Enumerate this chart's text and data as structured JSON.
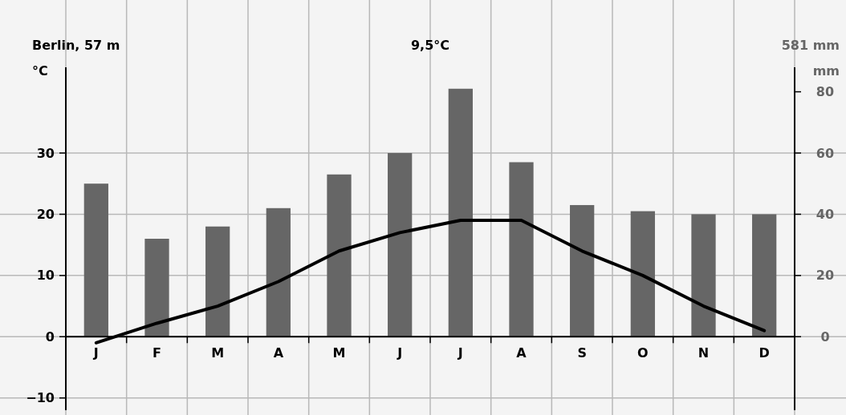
{
  "chart_data": {
    "type": "bar",
    "title": "Berlin, 57 m",
    "ylabel": "°C",
    "y2label": "mm",
    "annotations": [
      "9,5°C",
      "581 mm"
    ],
    "categories": [
      "J",
      "F",
      "M",
      "A",
      "M",
      "J",
      "J",
      "A",
      "S",
      "O",
      "N",
      "D"
    ],
    "series": [
      {
        "axis": "y2",
        "color": "#666666",
        "values": [
          50,
          32,
          36,
          42,
          53,
          60,
          81,
          57,
          43,
          41,
          40,
          40
        ]
      },
      {
        "type": "line",
        "color": "#000000",
        "values": [
          -1,
          2.2,
          5,
          9,
          14,
          17,
          19,
          19,
          14,
          10,
          5,
          1
        ]
      }
    ],
    "ylim": [
      -12,
      44
    ],
    "yticks": [
      -10,
      0,
      10,
      20,
      30
    ],
    "y2lim": [
      -24,
      88
    ],
    "y2ticks": [
      0,
      20,
      40,
      60,
      80
    ],
    "grid": true,
    "line_style": "solid",
    "marker": "none"
  }
}
